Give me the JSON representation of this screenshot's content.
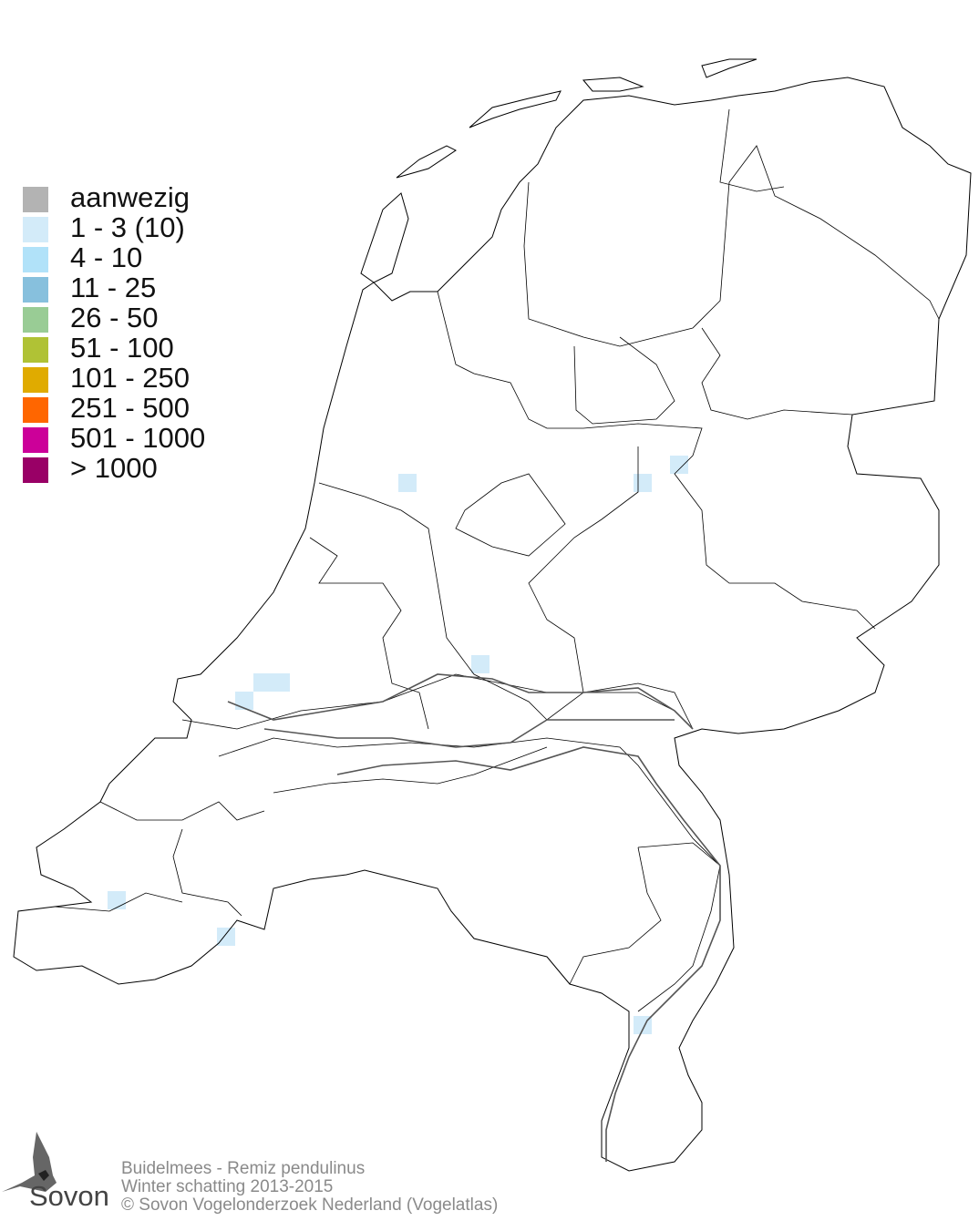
{
  "legend": {
    "items": [
      {
        "label": "aanwezig",
        "color": "#b3b3b3"
      },
      {
        "label": "1 - 3 (10)",
        "color": "#d3ebf9"
      },
      {
        "label": "4 - 10",
        "color": "#b1e2f9"
      },
      {
        "label": "11 - 25",
        "color": "#87c0dd"
      },
      {
        "label": "26 - 50",
        "color": "#99cc95"
      },
      {
        "label": "51 - 100",
        "color": "#b0c235"
      },
      {
        "label": "101 - 250",
        "color": "#e0ab00"
      },
      {
        "label": "251 - 500",
        "color": "#ff6600"
      },
      {
        "label": "501 - 1000",
        "color": "#cc0099"
      },
      {
        "label": "> 1000",
        "color": "#990066"
      }
    ]
  },
  "footer": {
    "species": "Buidelmees - Remiz pendulinus",
    "period": "Winter schatting 2013-2015",
    "copyright": "© Sovon Vogelonderzoek Nederland (Vogelatlas)"
  },
  "logo": {
    "text": "Sovon"
  },
  "map": {
    "occupied_class": "1 - 3 (10)",
    "occupied_color": "#d3ebf9",
    "outline_color": "#000000"
  }
}
